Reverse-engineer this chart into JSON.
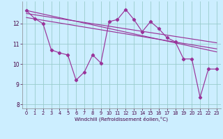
{
  "xlabel": "Windchill (Refroidissement éolien,°C)",
  "bg_color": "#cceeff",
  "grid_color": "#99cccc",
  "line_color": "#993399",
  "xlim": [
    -0.5,
    23.5
  ],
  "ylim": [
    7.8,
    13.1
  ],
  "yticks": [
    8,
    9,
    10,
    11,
    12
  ],
  "xticks": [
    0,
    1,
    2,
    3,
    4,
    5,
    6,
    7,
    8,
    9,
    10,
    11,
    12,
    13,
    14,
    15,
    16,
    17,
    18,
    19,
    20,
    21,
    22,
    23
  ],
  "series1_x": [
    0,
    1,
    2,
    3,
    4,
    5,
    6,
    7,
    8,
    9,
    10,
    11,
    12,
    13,
    14,
    15,
    16,
    17,
    18,
    19,
    20,
    21,
    22,
    23
  ],
  "series1_y": [
    12.65,
    12.25,
    12.0,
    10.7,
    10.55,
    10.45,
    9.2,
    9.6,
    10.45,
    10.05,
    12.1,
    12.2,
    12.7,
    12.2,
    11.6,
    12.1,
    11.75,
    11.3,
    11.1,
    10.25,
    10.25,
    8.35,
    9.75,
    9.75
  ],
  "trend1_x": [
    0,
    23
  ],
  "trend1_y": [
    12.65,
    10.6
  ],
  "trend2_x": [
    0,
    23
  ],
  "trend2_y": [
    12.5,
    11.05
  ],
  "trend3_x": [
    0,
    23
  ],
  "trend3_y": [
    12.3,
    10.75
  ]
}
